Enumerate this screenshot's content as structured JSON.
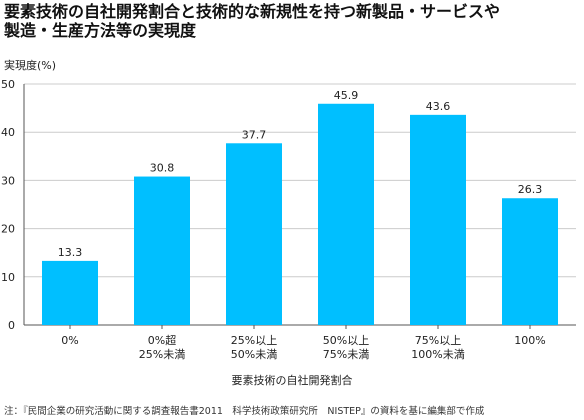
{
  "title": {
    "line1": "要素技術の自社開発割合と技術的な新規性を持つ新製品・サービスや",
    "line2": "製造・生産方法等の実現度"
  },
  "note": "注：『民間企業の研究活動に関する調査報告書2011　科学技術政策研究所　NISTEP』の資料を基に編集部で作成",
  "colors": {
    "bar": "#00bfff",
    "axis": "#555555",
    "grid": "#cccccc"
  },
  "chart_data": {
    "type": "bar",
    "ylabel": "実現度(%)",
    "xlabel": "要素技術の自社開発割合",
    "ylim": [
      0,
      50
    ],
    "yticks": [
      0,
      10,
      20,
      30,
      40,
      50
    ],
    "grid": true,
    "categories": [
      [
        "0%"
      ],
      [
        "0%超",
        "25%未満"
      ],
      [
        "25%以上",
        "50%未満"
      ],
      [
        "50%以上",
        "75%未満"
      ],
      [
        "75%以上",
        "100%未満"
      ],
      [
        "100%"
      ]
    ],
    "values": [
      13.3,
      30.8,
      37.7,
      45.9,
      43.6,
      26.3
    ],
    "value_labels": [
      "13.3",
      "30.8",
      "37.7",
      "45.9",
      "43.6",
      "26.3"
    ]
  }
}
